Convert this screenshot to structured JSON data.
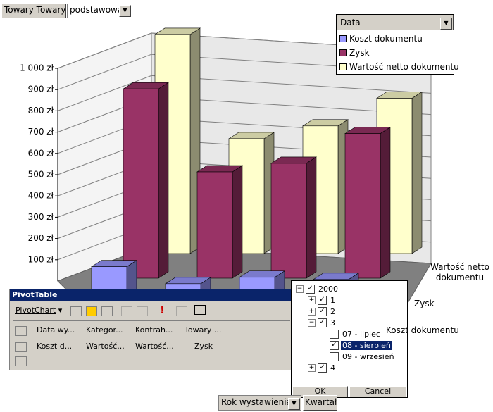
{
  "page_field": {
    "button": "Towary Towary",
    "value": "podstawowa"
  },
  "chart_data": {
    "type": "bar3d",
    "categories": [
      null,
      null,
      null,
      null
    ],
    "ylim": [
      0,
      1000
    ],
    "yticks": [
      {
        "value": 100,
        "label": "100 zł"
      },
      {
        "value": 200,
        "label": "200 zł"
      },
      {
        "value": 300,
        "label": "300 zł"
      },
      {
        "value": 400,
        "label": "400 zł"
      },
      {
        "value": 500,
        "label": "500 zł"
      },
      {
        "value": 600,
        "label": "600 zł"
      },
      {
        "value": 700,
        "label": "700 zł"
      },
      {
        "value": 800,
        "label": "800 zł"
      },
      {
        "value": 900,
        "label": "900 zł"
      },
      {
        "value": 1000,
        "label": "1 000 zł"
      }
    ],
    "grid": true,
    "legend": {
      "title": "Data",
      "position": "top-right"
    },
    "series": [
      {
        "name": "Koszt dokumentu",
        "color": "#9999ff",
        "values": [
          170,
          90,
          120,
          110
        ]
      },
      {
        "name": "Zysk",
        "color": "#993366",
        "values": [
          890,
          500,
          540,
          680
        ]
      },
      {
        "name": "Wartość netto dokumentu",
        "color": "#ffffcc",
        "values": [
          1030,
          540,
          600,
          730
        ]
      }
    ]
  },
  "pivot_toolbar": {
    "title": "PivotTable",
    "menu": "PivotChart",
    "fields": [
      "Data wy...",
      "Kategor...",
      "Kontrah...",
      "Towary ...",
      "Koszt d...",
      "Wartość...",
      "Wartość...",
      "Zysk"
    ]
  },
  "filter_popup": {
    "tree": [
      {
        "label": "2000",
        "checked": true,
        "children": [
          {
            "label": "1",
            "checked": true,
            "children": []
          },
          {
            "label": "2",
            "checked": true,
            "children": []
          },
          {
            "label": "3",
            "checked": true,
            "children": [
              {
                "label": "07 - lipiec",
                "checked": false
              },
              {
                "label": "08 - sierpień",
                "checked": true,
                "selected": true
              },
              {
                "label": "09 - wrzesień",
                "checked": false
              }
            ]
          },
          {
            "label": "4",
            "checked": true,
            "children": []
          }
        ]
      }
    ],
    "ok": "OK",
    "cancel": "Cancel"
  },
  "bottom_fields": [
    "Rok wystawienia",
    "Kwartał"
  ]
}
